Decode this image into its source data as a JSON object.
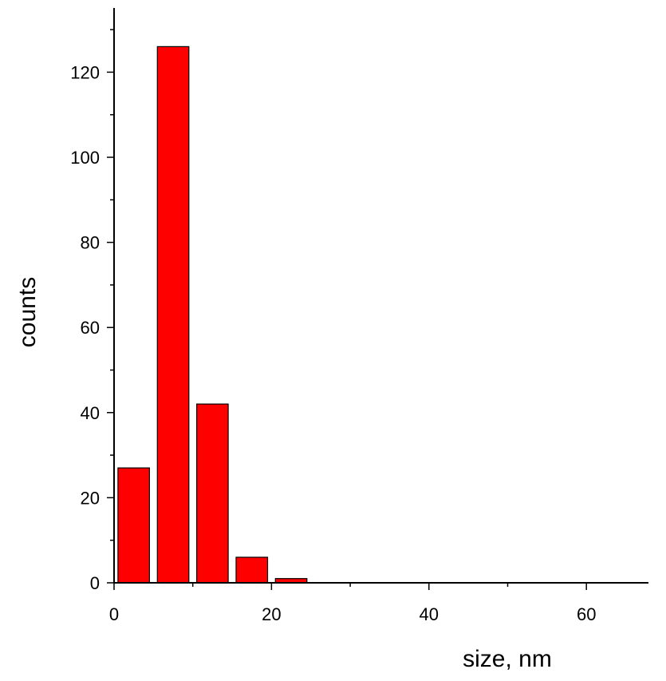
{
  "chart_data": {
    "type": "bar",
    "title": "",
    "xlabel": "size, nm",
    "ylabel": "counts",
    "bin_width": 4,
    "bin_centers": [
      2.5,
      7.5,
      12.5,
      17.5,
      22.5
    ],
    "values": [
      27,
      126,
      42,
      6,
      1
    ],
    "xlim": [
      0,
      68
    ],
    "ylim": [
      0,
      134
    ],
    "x_ticks": [
      0,
      20,
      40,
      60
    ],
    "x_minor_ticks": [
      10,
      30,
      50
    ],
    "y_ticks": [
      0,
      20,
      40,
      60,
      80,
      100,
      120
    ],
    "y_minor_ticks": [
      10,
      30,
      50,
      70,
      90,
      110,
      130
    ],
    "grid": false,
    "legend": "none",
    "bar_color": "#ff0000"
  }
}
